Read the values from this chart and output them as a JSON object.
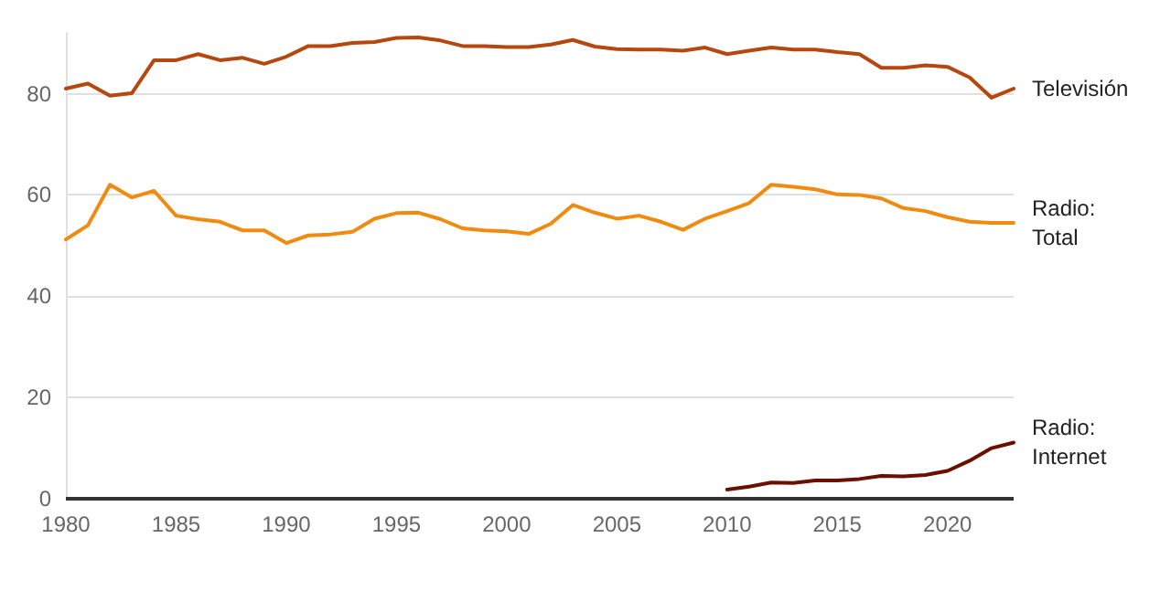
{
  "chart_data": {
    "type": "line",
    "x": [
      1980,
      1981,
      1982,
      1983,
      1984,
      1985,
      1986,
      1987,
      1988,
      1989,
      1990,
      1991,
      1992,
      1993,
      1994,
      1995,
      1996,
      1997,
      1998,
      1999,
      2000,
      2001,
      2002,
      2003,
      2004,
      2005,
      2006,
      2007,
      2008,
      2009,
      2010,
      2011,
      2012,
      2013,
      2014,
      2015,
      2016,
      2017,
      2018,
      2019,
      2020,
      2021,
      2022,
      2023
    ],
    "series": [
      {
        "name": "Televisión",
        "color": "#b5470f",
        "values": [
          81.0,
          82.0,
          79.6,
          80.1,
          86.6,
          86.6,
          87.8,
          86.6,
          87.1,
          85.9,
          87.3,
          89.4,
          89.4,
          90.0,
          90.2,
          91.0,
          91.1,
          90.5,
          89.4,
          89.4,
          89.2,
          89.2,
          89.7,
          90.6,
          89.3,
          88.8,
          88.7,
          88.7,
          88.5,
          89.1,
          87.8,
          88.5,
          89.1,
          88.7,
          88.7,
          88.2,
          87.8,
          85.1,
          85.1,
          85.6,
          85.3,
          83.2,
          79.2,
          81.0
        ]
      },
      {
        "name": "Radio: Total",
        "color": "#f08b10",
        "values": [
          51.2,
          54.0,
          62.0,
          59.5,
          60.8,
          55.9,
          55.2,
          54.7,
          53.0,
          53.0,
          50.5,
          52.0,
          52.2,
          52.7,
          55.3,
          56.4,
          56.5,
          55.2,
          53.4,
          53.0,
          52.8,
          52.3,
          54.3,
          58.0,
          56.5,
          55.3,
          55.9,
          54.7,
          53.1,
          55.3,
          56.8,
          58.4,
          62.0,
          61.6,
          61.1,
          60.1,
          60.0,
          59.3,
          57.4,
          56.8,
          55.6,
          54.7,
          54.5,
          54.5
        ]
      },
      {
        "name": "Radio: Internet",
        "color": "#6b0f00",
        "values": [
          null,
          null,
          null,
          null,
          null,
          null,
          null,
          null,
          null,
          null,
          null,
          null,
          null,
          null,
          null,
          null,
          null,
          null,
          null,
          null,
          null,
          null,
          null,
          null,
          null,
          null,
          null,
          null,
          null,
          null,
          1.8,
          2.4,
          3.2,
          3.1,
          3.6,
          3.6,
          3.9,
          4.5,
          4.4,
          4.7,
          5.5,
          7.5,
          10.0,
          11.1
        ]
      }
    ],
    "xlim": [
      1980,
      2023
    ],
    "xticks": [
      1980,
      1985,
      1990,
      1995,
      2000,
      2005,
      2010,
      2015,
      2020
    ],
    "ylim": [
      0,
      92
    ],
    "yticks": [
      0,
      20,
      40,
      60,
      80
    ],
    "grid": "y",
    "legend": false,
    "marker": "none",
    "line_style": "solid"
  }
}
